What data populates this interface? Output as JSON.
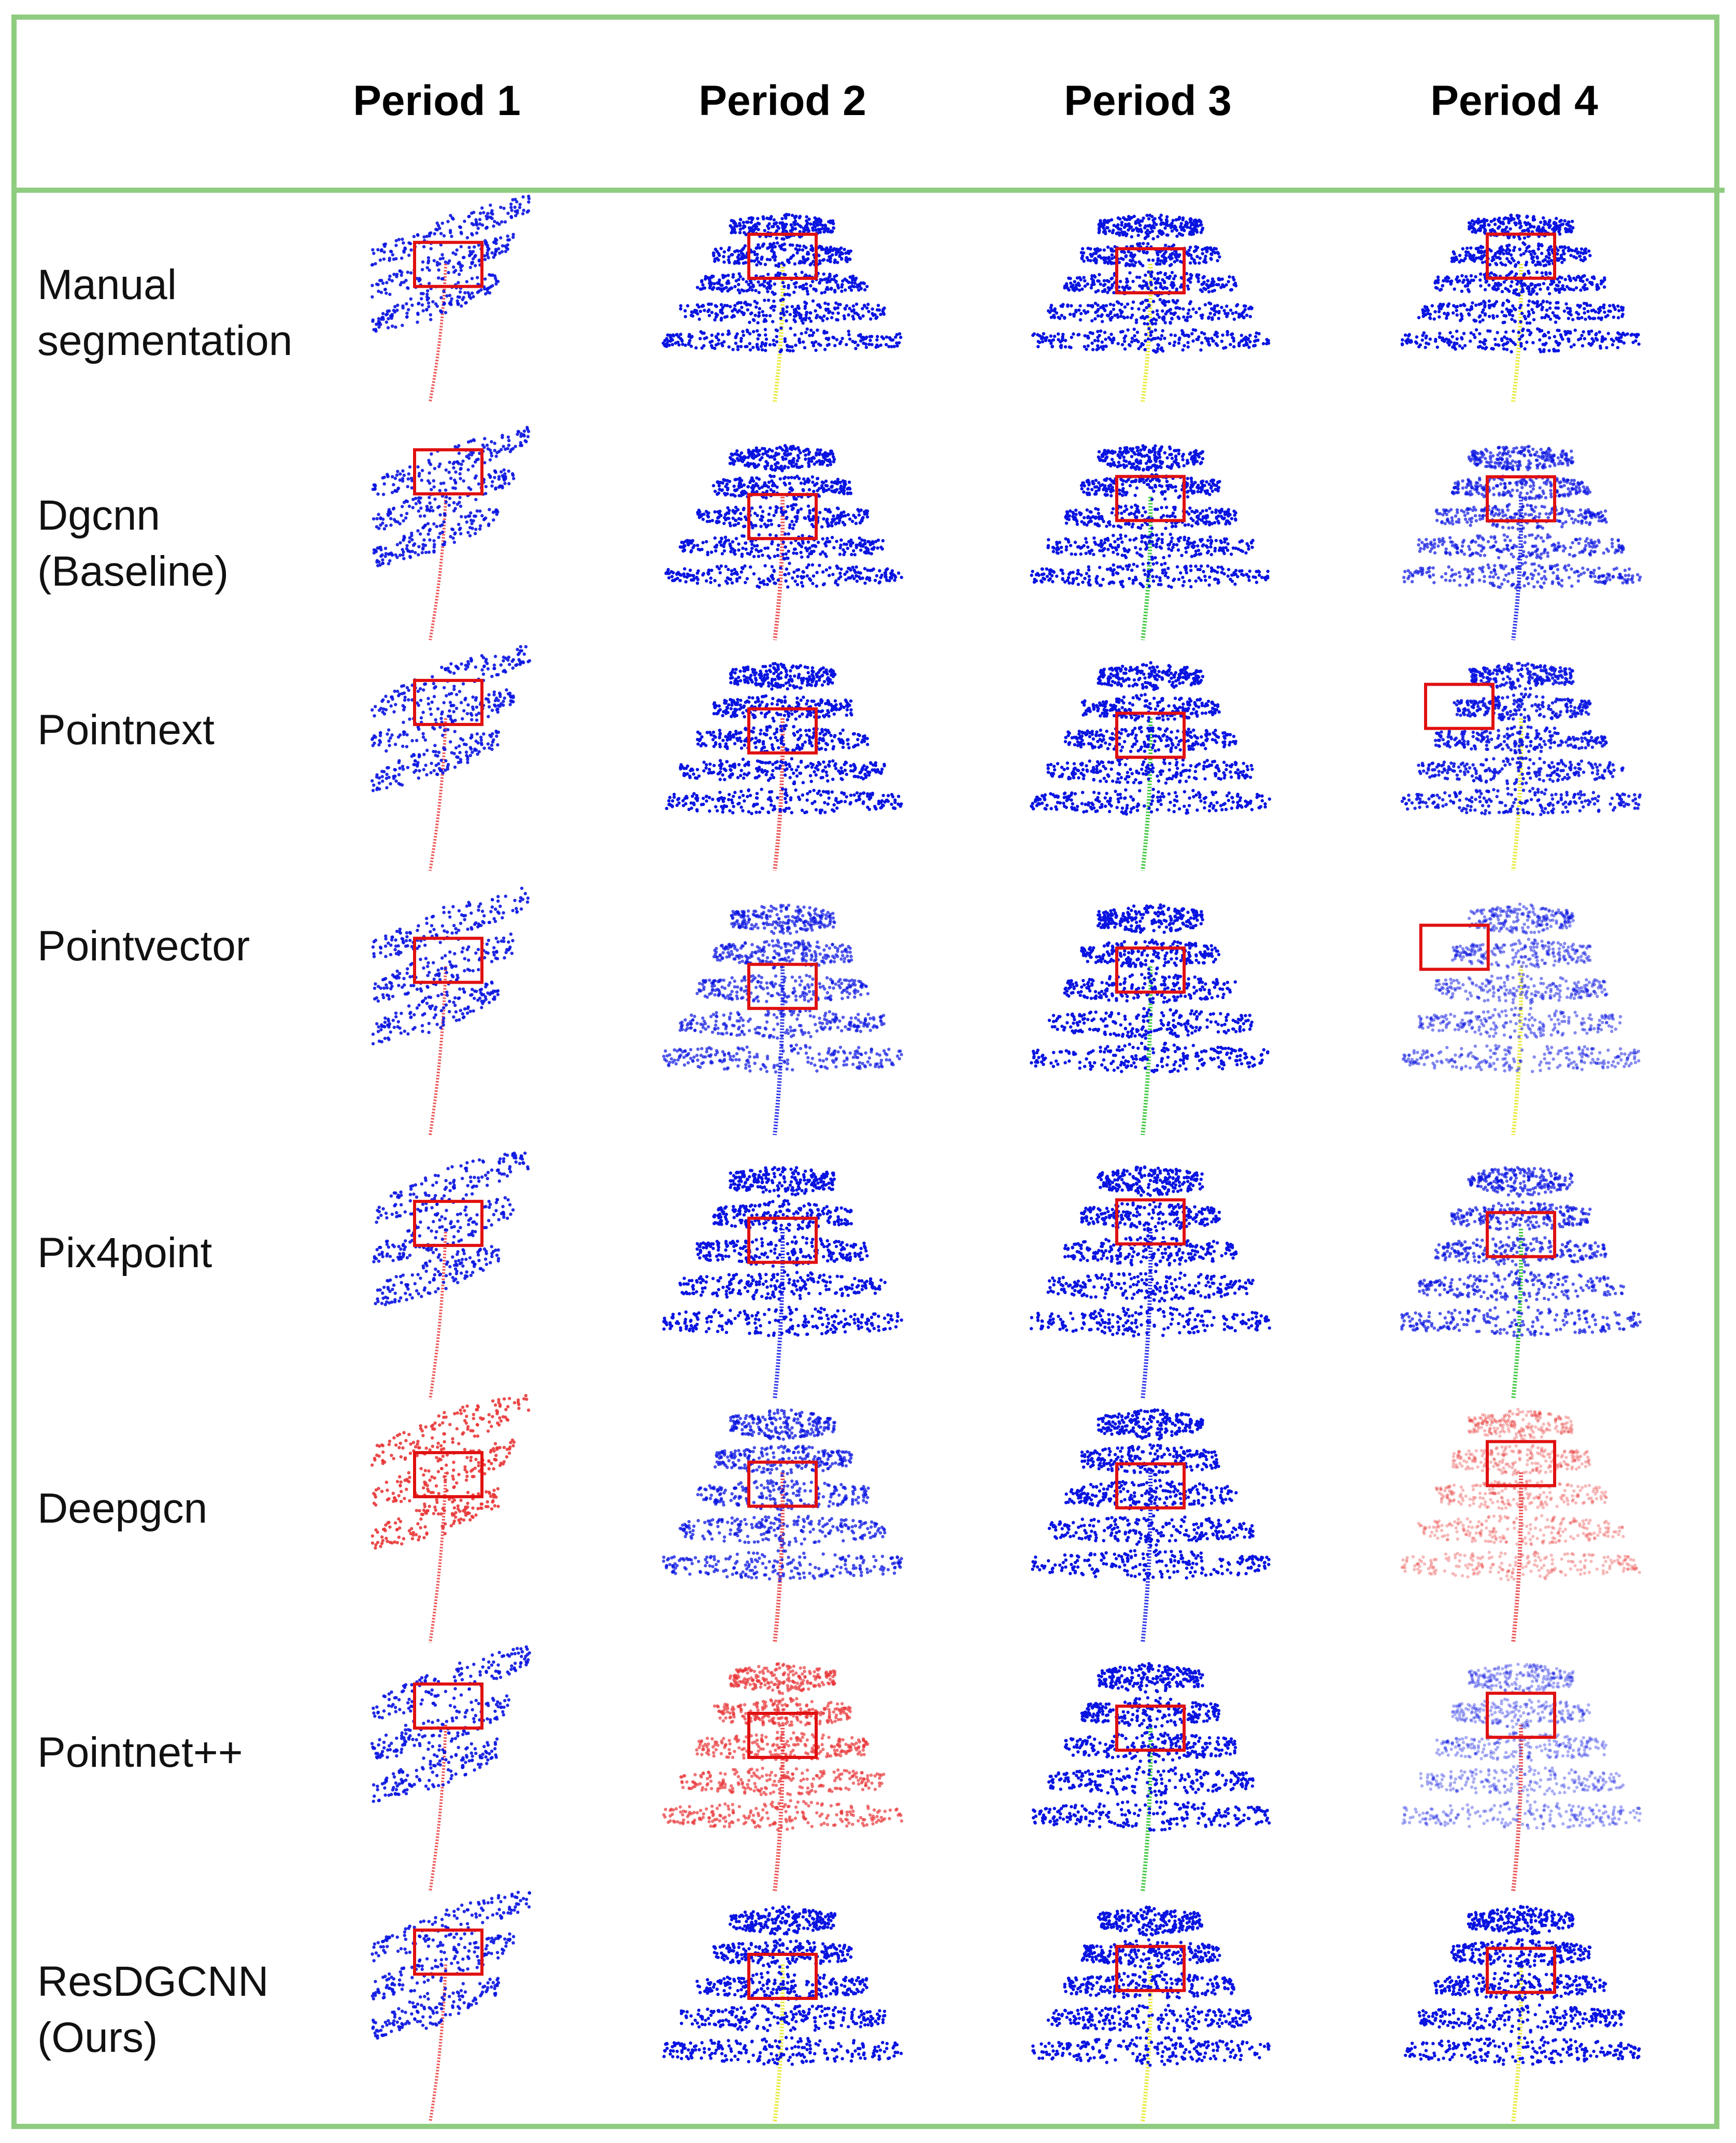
{
  "periods": [
    "Period 1",
    "Period 2",
    "Period 3",
    "Period 4"
  ],
  "methods": [
    {
      "lines": [
        "Manual",
        "segmentation"
      ]
    },
    {
      "lines": [
        "Dgcnn",
        "(Baseline)"
      ]
    },
    {
      "lines": [
        "Pointnext"
      ]
    },
    {
      "lines": [
        "Pointvector"
      ]
    },
    {
      "lines": [
        "Pix4point"
      ]
    },
    {
      "lines": [
        "Deepgcn"
      ]
    },
    {
      "lines": [
        "Pointnet++"
      ]
    },
    {
      "lines": [
        "ResDGCNN",
        "(Ours)"
      ]
    }
  ],
  "colors": {
    "border": "#8fcc80",
    "leaf": "#0a14e0",
    "stem_red": "#e8383a",
    "stem_green": "#22c022",
    "stem_yellow": "#e6e620",
    "box": "#e01010"
  }
}
